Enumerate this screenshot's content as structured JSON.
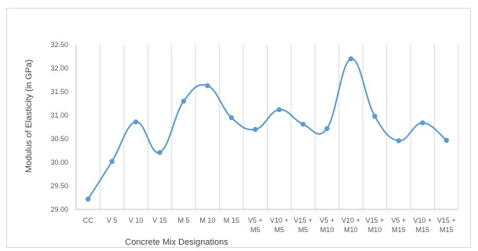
{
  "chart_data": {
    "type": "line",
    "title": "",
    "xlabel": "Concrete Mix Designations",
    "ylabel": "Modulus of Elasticity (in GPa)",
    "ylim": [
      29.0,
      32.5
    ],
    "yticks": [
      "29.00",
      "29.50",
      "30.00",
      "30.50",
      "31.00",
      "31.50",
      "32.00",
      "32.50"
    ],
    "grid": "vertical",
    "smooth": true,
    "categories": [
      [
        "CC"
      ],
      [
        "V 5"
      ],
      [
        "V 10"
      ],
      [
        "V 15"
      ],
      [
        "M 5"
      ],
      [
        "M 10"
      ],
      [
        "M 15"
      ],
      [
        "V5 +",
        "M5"
      ],
      [
        "V10 +",
        "M5"
      ],
      [
        "V15 +",
        "M5"
      ],
      [
        "V5 +",
        "M10"
      ],
      [
        "V10 +",
        "M10"
      ],
      [
        "V15 +",
        "M10"
      ],
      [
        "V5 +",
        "M15"
      ],
      [
        "V10 +",
        "M15"
      ],
      [
        "V15 +",
        "M15"
      ]
    ],
    "series": [
      {
        "values": [
          29.22,
          30.02,
          30.86,
          30.21,
          31.3,
          31.63,
          30.95,
          30.7,
          31.12,
          30.81,
          30.72,
          32.2,
          30.98,
          30.46,
          30.84,
          30.47
        ]
      }
    ],
    "colors": {
      "line": "#5b9bd5",
      "marker": "#5b9bd5",
      "grid": "#d9d9d9",
      "axis": "#bfbfbf"
    }
  }
}
